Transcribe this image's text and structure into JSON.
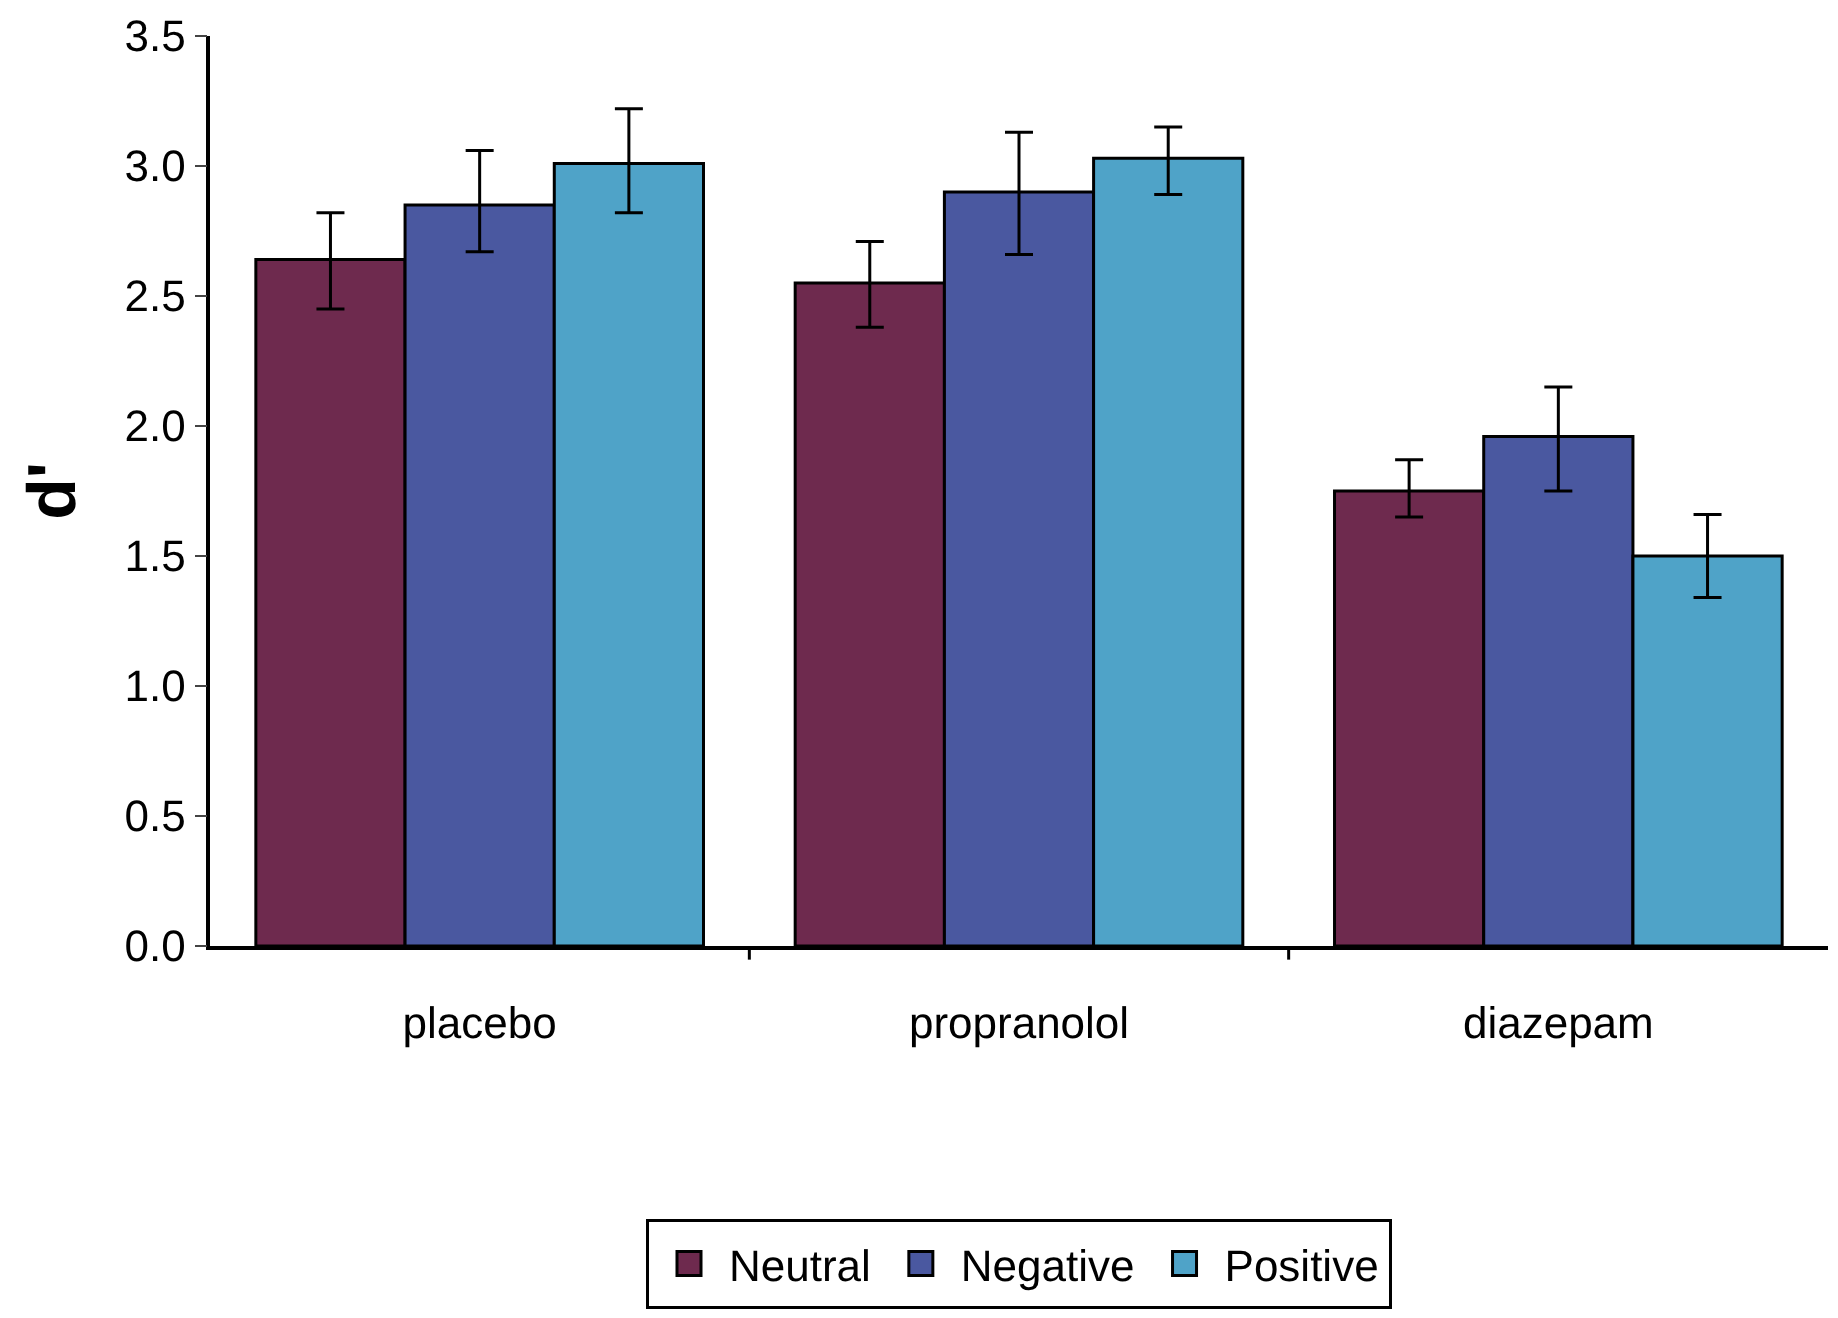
{
  "chart_data": {
    "type": "bar",
    "ylabel": "d'",
    "categories": [
      "placebo",
      "propranolol",
      "diazepam"
    ],
    "series": [
      {
        "name": "Neutral",
        "color": "#6e2a4e",
        "values": [
          2.64,
          2.55,
          1.75
        ],
        "errors": [
          [
            2.45,
            2.82
          ],
          [
            2.38,
            2.71
          ],
          [
            1.65,
            1.87
          ]
        ]
      },
      {
        "name": "Negative",
        "color": "#4a58a0",
        "values": [
          2.85,
          2.9,
          1.96
        ],
        "errors": [
          [
            2.67,
            3.06
          ],
          [
            2.66,
            3.13
          ],
          [
            1.75,
            2.15
          ]
        ]
      },
      {
        "name": "Positive",
        "color": "#4fa3c8",
        "values": [
          3.01,
          3.03,
          1.5
        ],
        "errors": [
          [
            2.82,
            3.22
          ],
          [
            2.89,
            3.15
          ],
          [
            1.34,
            1.66
          ]
        ]
      }
    ],
    "ylim": [
      0,
      3.5
    ],
    "yticks": [
      {
        "value": 0,
        "label": "0.0"
      },
      {
        "value": 0.5,
        "label": "0.5"
      },
      {
        "value": 1,
        "label": "1.0"
      },
      {
        "value": 1.5,
        "label": "1.5"
      },
      {
        "value": 2,
        "label": "2.0"
      },
      {
        "value": 2.5,
        "label": "2.5"
      },
      {
        "value": 3,
        "label": "3.0"
      },
      {
        "value": 3.5,
        "label": "3.5"
      }
    ],
    "grid": false,
    "legend": "bottom"
  }
}
